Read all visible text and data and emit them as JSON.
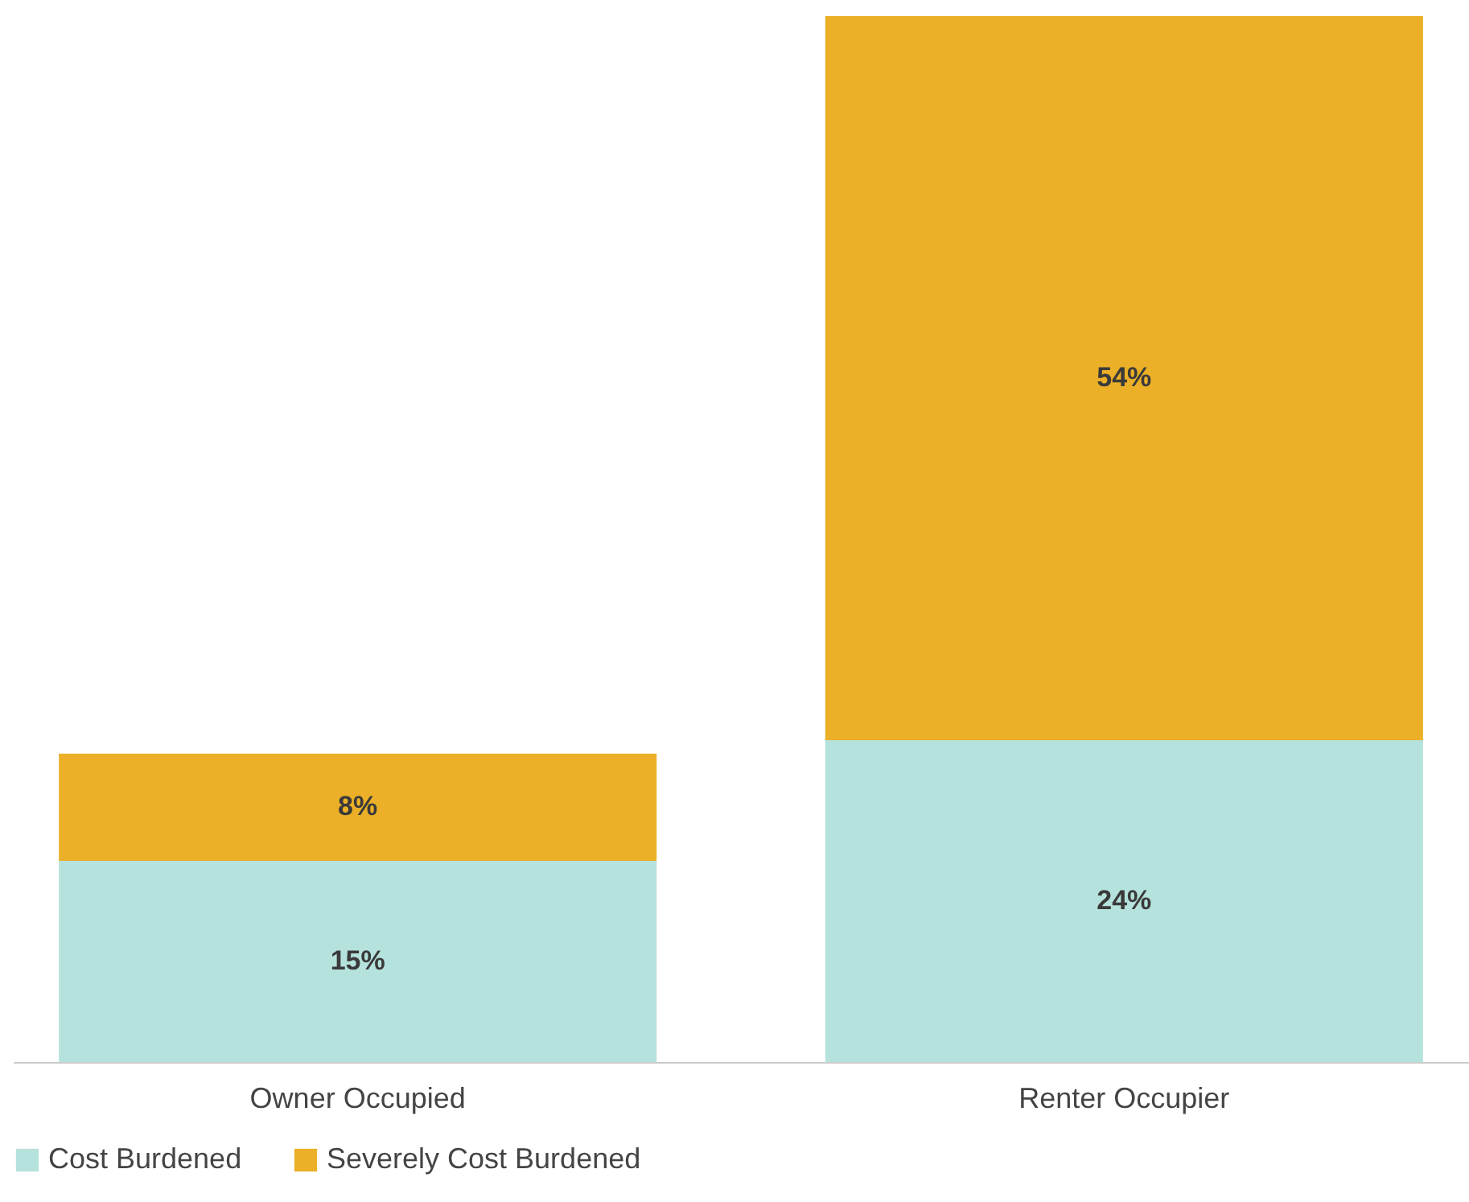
{
  "chart_data": {
    "type": "bar",
    "stacked": true,
    "categories": [
      "Owner Occupied",
      "Renter Occupier"
    ],
    "series": [
      {
        "name": "Cost Burdened",
        "color": "#b5e2dd",
        "values": [
          15,
          24
        ],
        "value_labels": [
          "15%",
          "24%"
        ]
      },
      {
        "name": "Severely Cost Burdened",
        "color": "#ebb027",
        "values": [
          8,
          54
        ],
        "value_labels": [
          "8%",
          "54%"
        ]
      }
    ],
    "legend": "bottom",
    "grid": false
  }
}
